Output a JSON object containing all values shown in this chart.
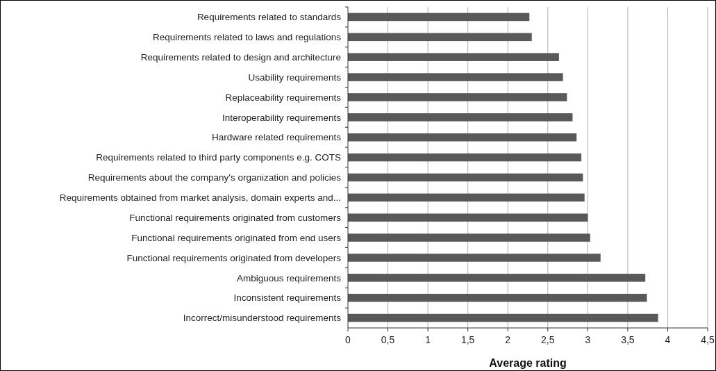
{
  "chart_data": {
    "type": "bar",
    "orientation": "horizontal",
    "xlabel": "Average rating",
    "categories": [
      "Requirements related to standards",
      "Requirements related to laws and regulations",
      "Requirements related to design and architecture",
      "Usability requirements",
      "Replaceability requirements",
      "Interoperability requirements ",
      "Hardware related requirements",
      "Requirements related to third party components e.g. COTS",
      "Requirements about the company's organization and policies",
      "Requirements obtained from market analysis, domain experts and...",
      "Functional requirements originated from customers",
      "Functional requirements originated from end users",
      "Functional requirements originated from developers",
      "Ambiguous requirements",
      "Inconsistent requirements",
      "Incorrect/misunderstood requirements "
    ],
    "values": [
      2.27,
      2.3,
      2.64,
      2.69,
      2.74,
      2.81,
      2.86,
      2.92,
      2.94,
      2.96,
      3.0,
      3.03,
      3.16,
      3.72,
      3.74,
      3.88
    ],
    "color": "#595959",
    "xlim": [
      0,
      4.5
    ],
    "xticks": [
      0,
      {
        "value": 0.5,
        "label": "0,5"
      },
      1,
      {
        "value": 1.5,
        "label": "1,5"
      },
      2,
      {
        "value": 2.5,
        "label": "2,5"
      },
      3,
      {
        "value": 3.5,
        "label": "3,5"
      },
      4,
      {
        "value": 4.5,
        "label": "4,5"
      }
    ],
    "grid": "x"
  }
}
